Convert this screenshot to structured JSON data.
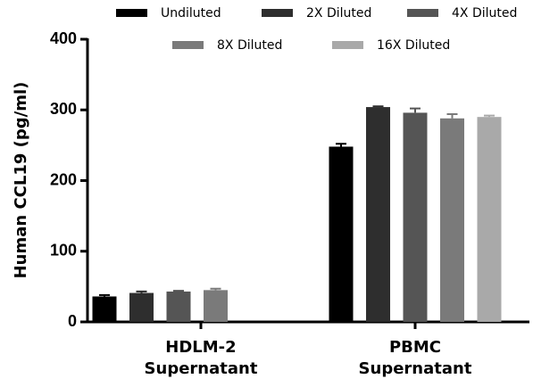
{
  "chart_data": {
    "type": "bar",
    "categories": [
      [
        "HDLM-2",
        "Supernatant"
      ],
      [
        "PBMC",
        "Supernatant"
      ]
    ],
    "series": [
      {
        "name": "Undiluted",
        "color": "#000000",
        "values": [
          36,
          248
        ],
        "errors": [
          2,
          4
        ]
      },
      {
        "name": "2X Diluted",
        "color": "#2e2e2e",
        "values": [
          41,
          304
        ],
        "errors": [
          2,
          1
        ]
      },
      {
        "name": "4X Diluted",
        "color": "#555555",
        "values": [
          43,
          296
        ],
        "errors": [
          1,
          6
        ]
      },
      {
        "name": "8X Diluted",
        "color": "#7a7a7a",
        "values": [
          45,
          288
        ],
        "errors": [
          2,
          6
        ]
      },
      {
        "name": "16X Diluted",
        "color": "#a9a9a9",
        "values": [
          null,
          290
        ],
        "errors": [
          null,
          2
        ]
      }
    ],
    "ylabel": "Human CCL19 (pg/ml)",
    "ylim": [
      0,
      400
    ],
    "yticks": [
      0,
      100,
      200,
      300,
      400
    ]
  }
}
